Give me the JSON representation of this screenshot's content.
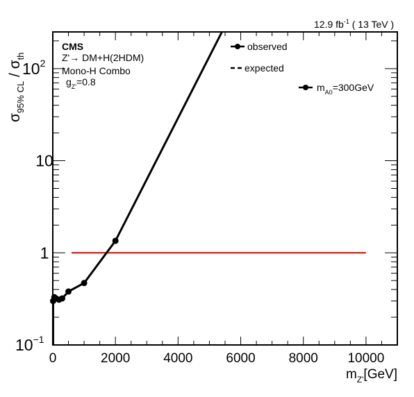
{
  "chart_data": {
    "type": "line",
    "header": {
      "lumi_value": "12.9 fb",
      "lumi_exp": "-1",
      "energy": "( 13 TeV )"
    },
    "annotations": {
      "experiment": "CMS",
      "model": "Z'→ DM+H(2HDM)",
      "channel": "Mono-H Combo",
      "coupling_base": "g",
      "coupling_sub": "Z'",
      "coupling_value": "=0.8"
    },
    "ylabel": {
      "main": "σ",
      "sub": "95% CL",
      "sep": " / σ",
      "sub2": "th"
    },
    "xlabel": {
      "main": "m",
      "sub": "Z'",
      "unit": "[GeV]"
    },
    "xlim": [
      0,
      11000
    ],
    "ylim": [
      0.1,
      250
    ],
    "ylog": true,
    "x_ticks": [
      "0",
      "2000",
      "4000",
      "6000",
      "8000",
      "10000"
    ],
    "y_ticks": [
      {
        "value": 0.1,
        "base": "10",
        "exp": "−1"
      },
      {
        "value": 1,
        "base": "1",
        "exp": ""
      },
      {
        "value": 10,
        "base": "10",
        "exp": ""
      },
      {
        "value": 100,
        "base": "10",
        "exp": "2"
      }
    ],
    "legend": {
      "position": "top-right",
      "entries": [
        {
          "key": "observed",
          "label": "observed",
          "style": "line-marker"
        },
        {
          "key": "expected",
          "label": "expected",
          "style": "dashed"
        }
      ]
    },
    "series": [
      {
        "key": "mA0_300",
        "label_base": "m",
        "label_sub": "A0",
        "label_value": "=300GeV",
        "color": "#000000",
        "x": [
          10,
          50,
          100,
          200,
          300,
          500,
          1000,
          2000
        ],
        "y": [
          0.3,
          0.33,
          0.32,
          0.31,
          0.32,
          0.38,
          0.47,
          1.35
        ],
        "extension_x": [
          2000,
          5400
        ],
        "extension_y": [
          1.35,
          250
        ]
      }
    ],
    "reference_line": {
      "y": 1,
      "x_range": [
        600,
        10000
      ],
      "color": "#dd0000"
    },
    "plot_title": ""
  }
}
